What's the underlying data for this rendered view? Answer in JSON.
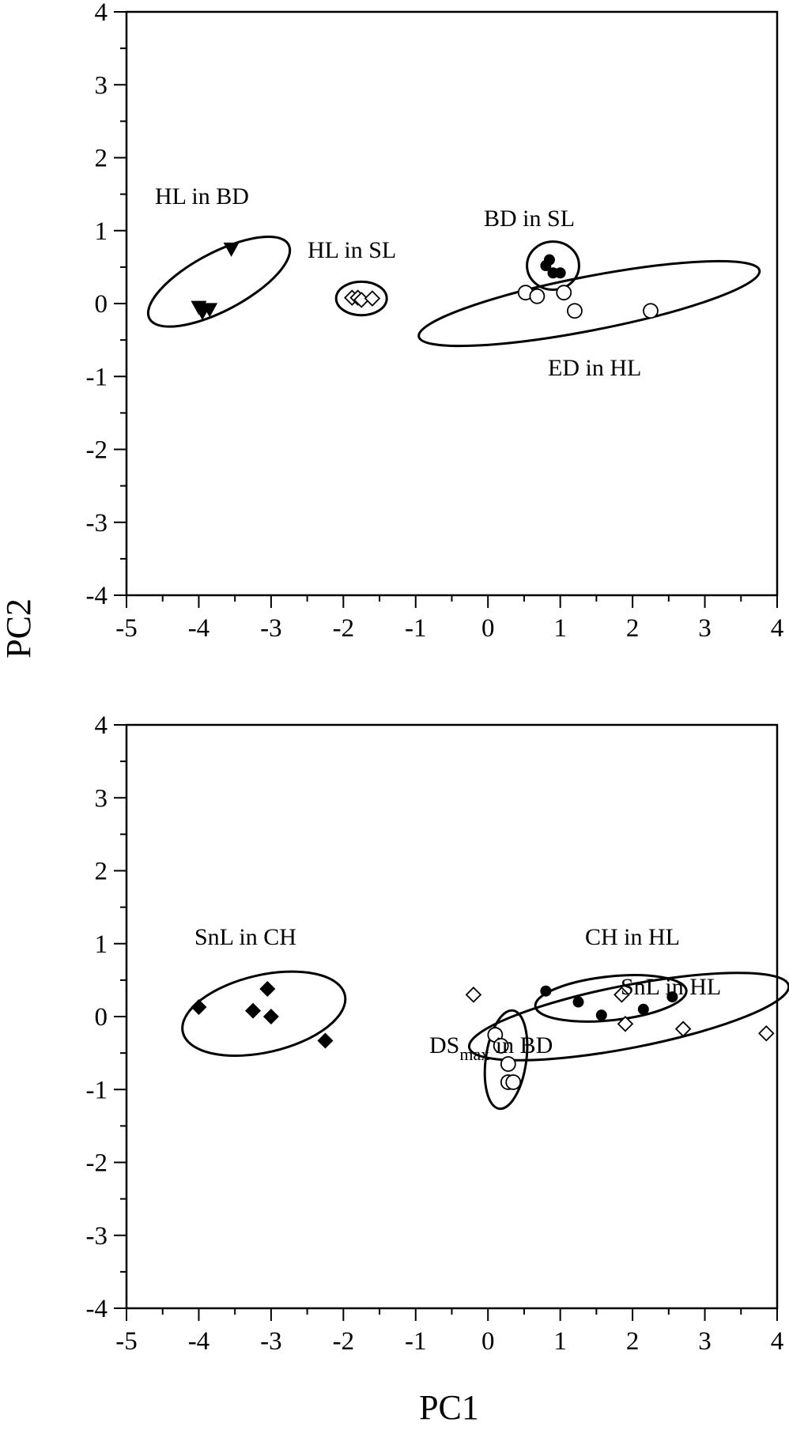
{
  "chart_data": [
    {
      "type": "scatter",
      "xlabel": "",
      "ylabel": "",
      "xlim": [
        -5,
        4
      ],
      "ylim": [
        -4,
        4
      ],
      "x_ticks": [
        "-5",
        "-4",
        "-3",
        "-2",
        "-1",
        "0",
        "1",
        "2",
        "3",
        "4"
      ],
      "y_ticks": [
        "4",
        "3",
        "2",
        "1",
        "0",
        "-1",
        "-2",
        "-3",
        "-4"
      ],
      "grid": false,
      "series": [
        {
          "marker": "triangle-down-filled",
          "points": [
            [
              -3.55,
              0.75
            ],
            [
              -4.0,
              -0.05
            ],
            [
              -3.95,
              -0.12
            ],
            [
              -3.85,
              -0.08
            ]
          ]
        },
        {
          "marker": "diamond-open",
          "points": [
            [
              -1.88,
              0.08
            ],
            [
              -1.8,
              0.08
            ],
            [
              -1.75,
              0.05
            ],
            [
              -1.6,
              0.07
            ]
          ]
        },
        {
          "marker": "circle-filled",
          "points": [
            [
              0.8,
              0.52
            ],
            [
              0.85,
              0.6
            ],
            [
              0.9,
              0.42
            ],
            [
              1.0,
              0.42
            ]
          ]
        },
        {
          "marker": "circle-open",
          "points": [
            [
              0.52,
              0.15
            ],
            [
              0.68,
              0.1
            ],
            [
              1.05,
              0.15
            ],
            [
              1.2,
              -0.1
            ],
            [
              2.25,
              -0.1
            ]
          ]
        }
      ],
      "groups": [
        {
          "label": "HL in BD",
          "ellipse": {
            "cx": -3.72,
            "cy": 0.3,
            "rx": 0.4,
            "ry": 1.08,
            "angle": -62
          }
        },
        {
          "label": "HL in SL",
          "ellipse": {
            "cx": -1.75,
            "cy": 0.07,
            "rx": 0.35,
            "ry": 0.23,
            "angle": 0
          }
        },
        {
          "label": "BD in SL",
          "ellipse": {
            "cx": 0.9,
            "cy": 0.52,
            "rx": 0.36,
            "ry": 0.33,
            "angle": 0
          }
        },
        {
          "label": "ED in HL",
          "ellipse": {
            "cx": 1.4,
            "cy": 0.0,
            "rx": 2.4,
            "ry": 0.37,
            "angle": 11
          }
        }
      ]
    },
    {
      "type": "scatter",
      "xlabel": "PC1",
      "ylabel": "",
      "xlim": [
        -5,
        4
      ],
      "ylim": [
        -4,
        4
      ],
      "x_ticks": [
        "-5",
        "-4",
        "-3",
        "-2",
        "-1",
        "0",
        "1",
        "2",
        "3",
        "4"
      ],
      "y_ticks": [
        "4",
        "3",
        "2",
        "1",
        "0",
        "-1",
        "-2",
        "-3",
        "-4"
      ],
      "grid": false,
      "series": [
        {
          "marker": "diamond-filled",
          "points": [
            [
              -4.0,
              0.13
            ],
            [
              -3.25,
              0.08
            ],
            [
              -3.05,
              0.38
            ],
            [
              -3.0,
              0.0
            ],
            [
              -2.25,
              -0.33
            ]
          ]
        },
        {
          "marker": "circle-filled",
          "points": [
            [
              0.8,
              0.35
            ],
            [
              1.25,
              0.2
            ],
            [
              1.57,
              0.02
            ],
            [
              2.15,
              0.1
            ],
            [
              2.55,
              0.27
            ]
          ]
        },
        {
          "marker": "diamond-open",
          "points": [
            [
              -0.2,
              0.3
            ],
            [
              1.85,
              0.3
            ],
            [
              1.9,
              -0.1
            ],
            [
              2.7,
              -0.17
            ],
            [
              3.85,
              -0.23
            ]
          ]
        },
        {
          "marker": "circle-open",
          "points": [
            [
              0.1,
              -0.25
            ],
            [
              0.18,
              -0.4
            ],
            [
              0.28,
              -0.65
            ],
            [
              0.28,
              -0.9
            ],
            [
              0.35,
              -0.9
            ]
          ]
        }
      ],
      "groups": [
        {
          "label": "SnL in CH",
          "ellipse": {
            "cx": -3.1,
            "cy": 0.04,
            "rx": 1.15,
            "ry": 0.53,
            "angle": 13
          }
        },
        {
          "label": "CH in HL",
          "ellipse": {
            "cx": 1.7,
            "cy": 0.25,
            "rx": 1.05,
            "ry": 0.3,
            "angle": 6
          }
        },
        {
          "label": "SnL in HL",
          "ellipse": {
            "cx": 1.95,
            "cy": 0.0,
            "rx": 2.25,
            "ry": 0.43,
            "angle": 11
          }
        },
        {
          "label": "DSmax in BD",
          "ellipse": {
            "cx": 0.25,
            "cy": -0.59,
            "rx": 0.28,
            "ry": 0.68,
            "angle": -8
          }
        }
      ]
    }
  ],
  "shared_ylabel": "PC2",
  "annotations": {
    "top": {
      "hl_in_bd": "HL in BD",
      "hl_in_sl": "HL in SL",
      "bd_in_sl": "BD in SL",
      "ed_in_hl": "ED in HL"
    },
    "bottom": {
      "snl_in_ch": "SnL in CH",
      "ch_in_hl": "CH in HL",
      "snl_in_hl": "SnL in HL",
      "ds_main": "DS",
      "ds_sub": "max",
      "ds_rest": " in BD"
    }
  }
}
